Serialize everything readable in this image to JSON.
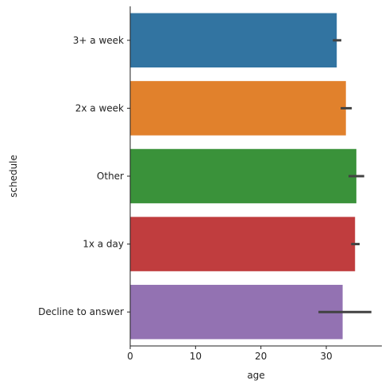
{
  "chart_data": {
    "type": "bar",
    "orientation": "horizontal",
    "title": "",
    "xlabel": "age",
    "ylabel": "schedule",
    "categories": [
      "3+ a week",
      "2x a week",
      "Other",
      "1x a day",
      "Decline to answer"
    ],
    "values": [
      31.6,
      33.0,
      34.6,
      34.4,
      32.5
    ],
    "error_bars": [
      [
        31.0,
        32.3
      ],
      [
        32.2,
        33.9
      ],
      [
        33.4,
        35.8
      ],
      [
        33.8,
        35.1
      ],
      [
        28.8,
        36.9
      ]
    ],
    "colors": [
      "#3274a1",
      "#e1812c",
      "#3a923a",
      "#c03d3e",
      "#9372b2"
    ],
    "error_color": "#424242",
    "xlim": [
      0,
      38.5
    ],
    "xticks": [
      0,
      10,
      20,
      30
    ],
    "grid": false,
    "legend": "none"
  }
}
